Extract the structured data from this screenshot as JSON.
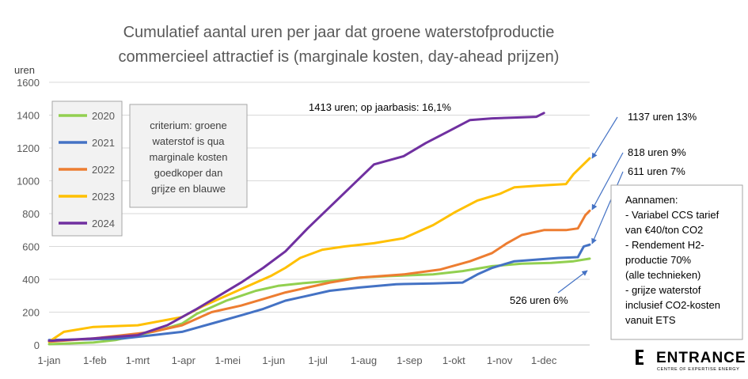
{
  "chart_data": {
    "type": "line",
    "title": "Cumulatief aantal uren per jaar dat groene waterstofproductie",
    "subtitle": "commercieel attractief is (marginale kosten, day-ahead prijzen)",
    "ylabel": "uren",
    "ylim": [
      0,
      1600
    ],
    "yticks": [
      "0",
      "200",
      "400",
      "600",
      "800",
      "1000",
      "1200",
      "1400",
      "1600"
    ],
    "x_categories": [
      "1-jan",
      "1-feb",
      "1-mrt",
      "1-apr",
      "1-mei",
      "1-jun",
      "1-jul",
      "1-aug",
      "1-sep",
      "1-okt",
      "1-nov",
      "1-dec"
    ],
    "xlim_days": [
      0,
      366
    ],
    "grid": "horizontal",
    "series": [
      {
        "name": "2020",
        "color": "#92d050",
        "x_days": [
          0,
          30,
          45,
          60,
          75,
          90,
          100,
          110,
          120,
          130,
          140,
          155,
          170,
          190,
          210,
          230,
          260,
          280,
          300,
          320,
          340,
          355,
          366
        ],
        "values": [
          5,
          15,
          30,
          60,
          90,
          130,
          190,
          230,
          270,
          300,
          330,
          360,
          375,
          390,
          410,
          420,
          430,
          450,
          480,
          495,
          500,
          510,
          526
        ]
      },
      {
        "name": "2021",
        "color": "#4472c4",
        "x_days": [
          0,
          30,
          50,
          70,
          90,
          110,
          130,
          145,
          160,
          175,
          190,
          210,
          235,
          260,
          280,
          290,
          300,
          315,
          330,
          345,
          358,
          362,
          366
        ],
        "values": [
          30,
          35,
          40,
          60,
          80,
          130,
          180,
          220,
          270,
          300,
          330,
          350,
          370,
          375,
          380,
          430,
          470,
          510,
          520,
          530,
          535,
          600,
          611
        ]
      },
      {
        "name": "2022",
        "color": "#ed7d31",
        "x_days": [
          0,
          30,
          50,
          70,
          90,
          110,
          130,
          145,
          160,
          175,
          190,
          210,
          240,
          265,
          285,
          300,
          310,
          320,
          335,
          350,
          358,
          363,
          366
        ],
        "values": [
          20,
          40,
          60,
          80,
          120,
          200,
          240,
          280,
          320,
          350,
          380,
          410,
          430,
          460,
          510,
          560,
          620,
          670,
          700,
          700,
          710,
          790,
          818
        ]
      },
      {
        "name": "2023",
        "color": "#ffc000",
        "x_days": [
          0,
          10,
          30,
          60,
          90,
          105,
          120,
          135,
          150,
          160,
          170,
          185,
          200,
          220,
          240,
          260,
          275,
          290,
          305,
          315,
          330,
          350,
          355,
          366
        ],
        "values": [
          20,
          80,
          110,
          120,
          170,
          240,
          300,
          360,
          420,
          470,
          530,
          580,
          600,
          620,
          650,
          730,
          810,
          880,
          920,
          960,
          970,
          980,
          1040,
          1137
        ]
      },
      {
        "name": "2024",
        "color": "#7030a0",
        "x_days": [
          0,
          30,
          60,
          80,
          100,
          115,
          130,
          145,
          160,
          175,
          190,
          205,
          220,
          240,
          255,
          270,
          285,
          300,
          315,
          330,
          335
        ],
        "values": [
          25,
          40,
          60,
          120,
          220,
          300,
          380,
          470,
          570,
          710,
          840,
          970,
          1100,
          1150,
          1230,
          1300,
          1370,
          1380,
          1385,
          1390,
          1413
        ]
      }
    ]
  },
  "legend": {
    "items": [
      "2020",
      "2021",
      "2022",
      "2023",
      "2024"
    ]
  },
  "criterion_note": [
    "criterium: groene",
    "waterstof is qua",
    "marginale kosten",
    "goedkoper dan",
    "grijze en blauwe"
  ],
  "annotations": {
    "a2024": "1413 uren; op jaarbasis: 16,1%",
    "a2023": "1137 uren  13%",
    "a2022": "818 uren 9%",
    "a2021": "611 uren 7%",
    "a2020": "526 uren  6%"
  },
  "assumptions": [
    "Aannamen:",
    "- Variabel CCS tarief",
    "van €40/ton CO2",
    "- Rendement H2-",
    "productie 70%",
    "(alle technieken)",
    "- grijze waterstof",
    "inclusief CO2-kosten",
    "vanuit ETS"
  ],
  "logo": {
    "name": "ENTRANCE",
    "tagline": "CENTRE OF EXPERTISE ENERGY"
  }
}
